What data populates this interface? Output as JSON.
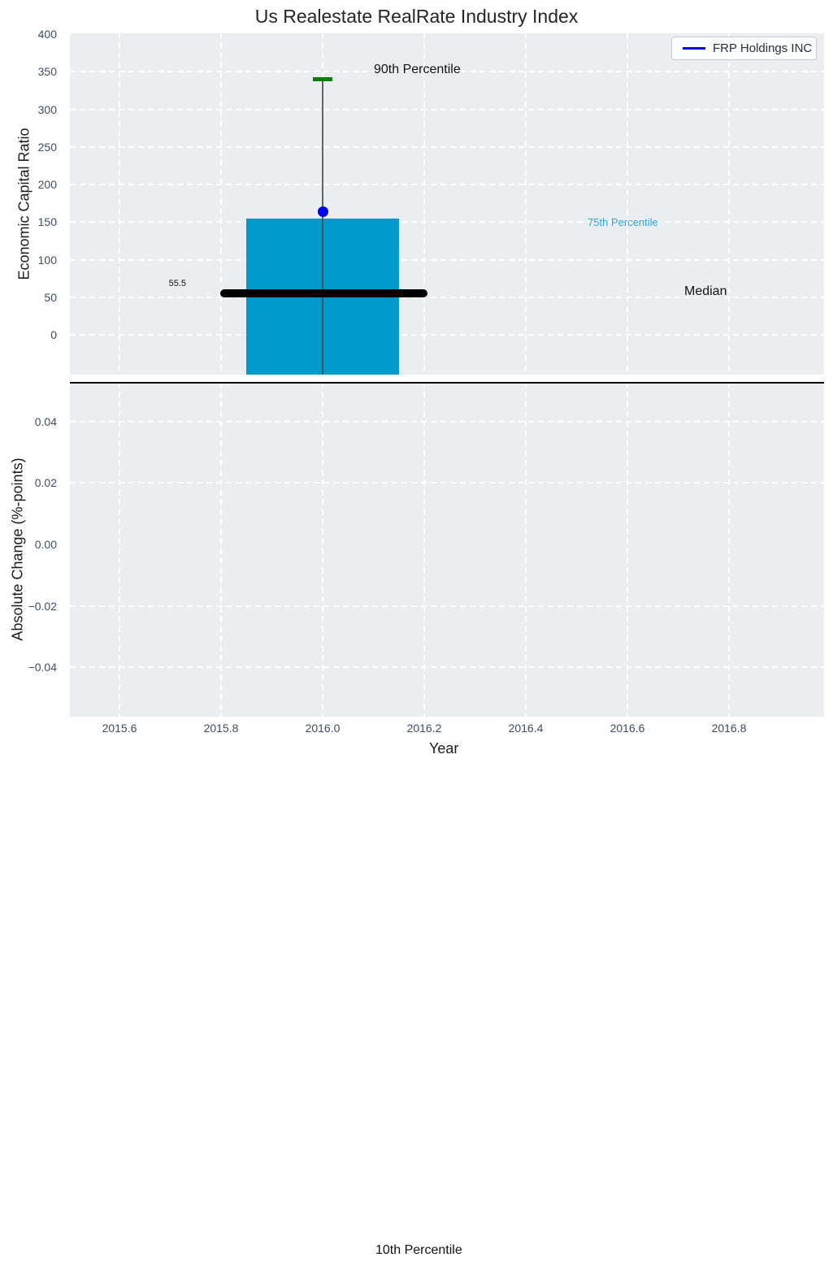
{
  "title": "Us Realestate RealRate Industry Index",
  "legend": {
    "label": "FRP Holdings INC"
  },
  "annotations": {
    "p90_label": "90th Percentile",
    "p75_label": "75th Percentile",
    "median_label": "Median",
    "median_value_label": "55.5",
    "p10_label": "10th Percentile"
  },
  "colors": {
    "plot_bg": "#eaeef1",
    "grid": "#ffffff",
    "bar": "#0099cd",
    "median_line": "#000000",
    "p90_cap": "#0a800a",
    "company_marker": "#0000ee",
    "p75_text": "#29a7da",
    "tick_text": "#3e4d64",
    "whisker": "#4a4a4a"
  },
  "chart_data": [
    {
      "type": "bar",
      "subplot": "top",
      "title": "Us Realestate RealRate Industry Index",
      "ylabel": "Economic Capital Ratio",
      "ylim": [
        -53,
        400
      ],
      "yticks": [
        400,
        350,
        300,
        250,
        200,
        150,
        100,
        50,
        0
      ],
      "grid": true,
      "legend_position": "upper right",
      "x_center": 2016.0,
      "bar_x_range": [
        2015.85,
        2016.15
      ],
      "percentiles": {
        "p90": 341,
        "p75": 155,
        "median": 55.5,
        "p10": null
      },
      "company_point": {
        "name": "FRP Holdings INC",
        "x": 2016.0,
        "y": 164
      }
    },
    {
      "type": "line",
      "subplot": "bottom",
      "xlabel": "Year",
      "ylabel": "Absolute Change (%-points)",
      "ylim": [
        -0.055,
        0.055
      ],
      "yticks": [
        0.04,
        0.02,
        0.0,
        -0.02,
        -0.04
      ],
      "ytick_labels": [
        "0.04",
        "0.02",
        "0.00",
        "−0.02",
        "−0.04"
      ],
      "xticks": [
        2015.6,
        2015.8,
        2016.0,
        2016.2,
        2016.4,
        2016.6,
        2016.8
      ],
      "xtick_labels": [
        "2015.6",
        "2015.8",
        "2016.0",
        "2016.2",
        "2016.4",
        "2016.6",
        "2016.8"
      ],
      "xlim": [
        2015.5,
        2017.0
      ],
      "zero_line": 0.0,
      "series": [],
      "grid": true
    }
  ]
}
